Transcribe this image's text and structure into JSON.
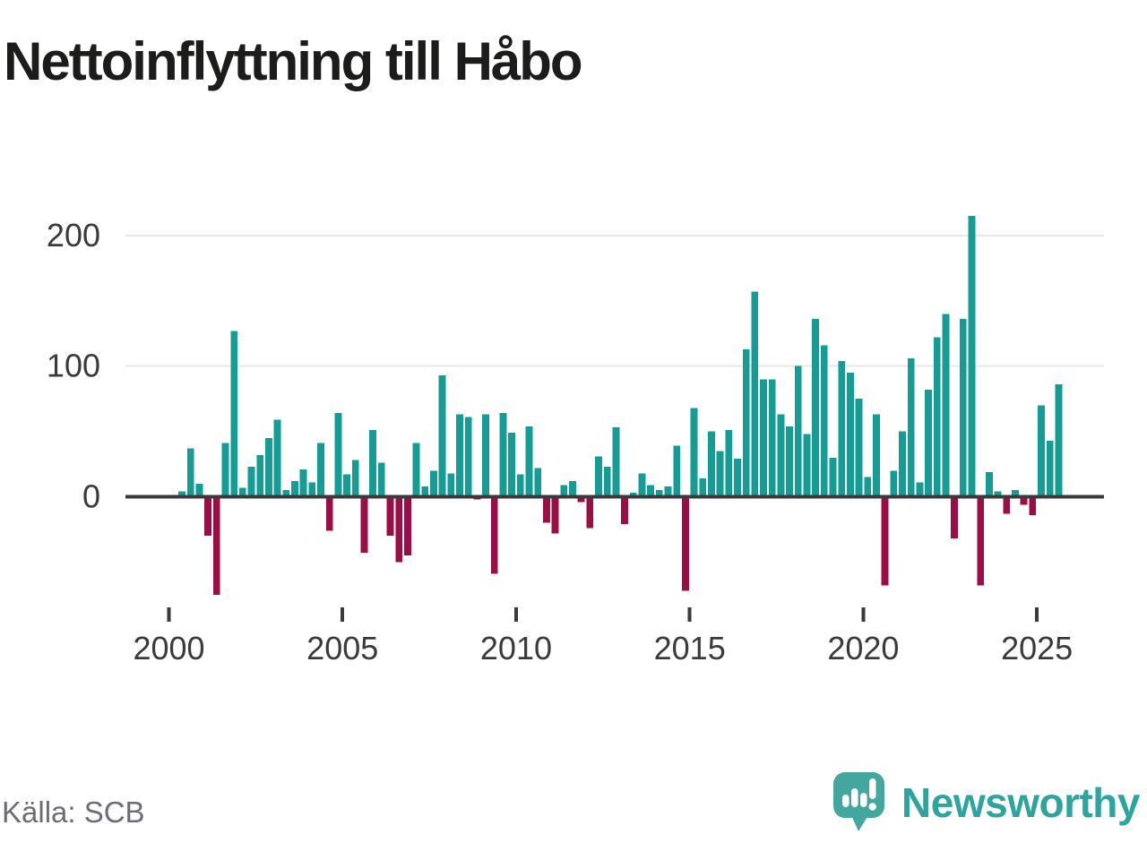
{
  "title": "Nettoinflyttning till Håbo",
  "source": "Källa: SCB",
  "brand": {
    "name": "Newsworthy",
    "icon": "speech-bubble-bar-chart-icon"
  },
  "colors": {
    "positive_bar": "#149c95",
    "negative_bar": "#9c0d45",
    "axis": "#3a3a3a",
    "grid": "#e7e7e7",
    "tick_text": "#3a3a3a",
    "title_text": "#1c1c1a",
    "source_text": "#6c6c75",
    "brand_teal": "#2da49d",
    "logo_bubble": "#43a7a0"
  },
  "chart_data": {
    "type": "bar",
    "title": "Nettoinflyttning till Håbo",
    "xlabel": "",
    "ylabel": "",
    "frequency": "quarterly",
    "start": {
      "year": 2000,
      "quarter": 1
    },
    "end": {
      "year": 2025,
      "quarter": 3
    },
    "values": [
      0,
      4,
      37,
      10,
      -30,
      -75,
      41,
      127,
      7,
      23,
      32,
      45,
      59,
      5,
      12,
      21,
      11,
      41,
      -26,
      64,
      17,
      28,
      -43,
      51,
      26,
      -30,
      -50,
      -45,
      41,
      8,
      20,
      93,
      18,
      63,
      61,
      -2,
      63,
      -59,
      64,
      49,
      17,
      54,
      22,
      -20,
      -28,
      9,
      12,
      -4,
      -24,
      31,
      23,
      53,
      -21,
      3,
      18,
      9,
      5,
      8,
      39,
      -72,
      68,
      14,
      50,
      35,
      51,
      29,
      113,
      157,
      90,
      90,
      63,
      54,
      100,
      48,
      136,
      116,
      30,
      104,
      95,
      75,
      15,
      63,
      -68,
      20,
      50,
      106,
      11,
      82,
      122,
      140,
      -32,
      136,
      215,
      -68,
      19,
      4,
      -13,
      5,
      -6,
      -14,
      70,
      43,
      86
    ],
    "x_tick_labels": [
      "2000",
      "2005",
      "2010",
      "2015",
      "2020",
      "2025"
    ],
    "y_ticks": [
      0,
      100,
      200
    ],
    "y_tick_labels": [
      "0",
      "100",
      "200"
    ],
    "ylim": [
      -90,
      230
    ],
    "grid": "horizontal",
    "legend": "none"
  }
}
